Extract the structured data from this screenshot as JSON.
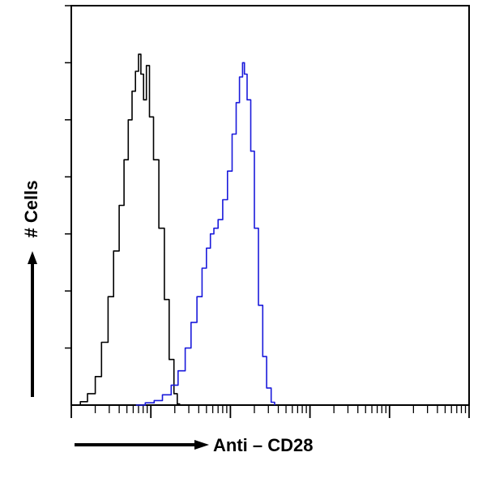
{
  "chart_data": {
    "type": "area",
    "title": "",
    "xlabel": "Anti – CD28",
    "ylabel": "# Cells",
    "x_scale": "log",
    "xlim": [
      1,
      100000
    ],
    "ylim": [
      0,
      7
    ],
    "grid": false,
    "legend": "none",
    "series": [
      {
        "color": "#000000",
        "points": [
          [
            1.0,
            0
          ],
          [
            1.3,
            0.06
          ],
          [
            1.6,
            0.2
          ],
          [
            2.0,
            0.5
          ],
          [
            2.4,
            1.1
          ],
          [
            2.9,
            1.9
          ],
          [
            3.4,
            2.7
          ],
          [
            4.0,
            3.5
          ],
          [
            4.6,
            4.3
          ],
          [
            5.2,
            5.0
          ],
          [
            5.8,
            5.5
          ],
          [
            6.4,
            5.85
          ],
          [
            7.0,
            6.15
          ],
          [
            7.5,
            5.8
          ],
          [
            8.1,
            5.35
          ],
          [
            8.8,
            5.95
          ],
          [
            9.6,
            5.05
          ],
          [
            10.8,
            4.3
          ],
          [
            12.6,
            3.1
          ],
          [
            14.8,
            1.85
          ],
          [
            17.0,
            0.8
          ],
          [
            19.5,
            0.2
          ],
          [
            21.5,
            0.02
          ],
          [
            23.0,
            0
          ]
        ]
      },
      {
        "color": "#1a1adb",
        "points": [
          [
            6.5,
            0
          ],
          [
            8.5,
            0.04
          ],
          [
            11.0,
            0.08
          ],
          [
            14.0,
            0.18
          ],
          [
            18.0,
            0.35
          ],
          [
            22.0,
            0.6
          ],
          [
            27.0,
            1.0
          ],
          [
            32.0,
            1.45
          ],
          [
            38.0,
            1.9
          ],
          [
            44.0,
            2.4
          ],
          [
            50.0,
            2.75
          ],
          [
            56.0,
            3.0
          ],
          [
            62.0,
            3.1
          ],
          [
            70.0,
            3.25
          ],
          [
            80.0,
            3.6
          ],
          [
            92.0,
            4.1
          ],
          [
            105.0,
            4.75
          ],
          [
            118.0,
            5.3
          ],
          [
            130.0,
            5.75
          ],
          [
            142.0,
            6.0
          ],
          [
            150.0,
            5.8
          ],
          [
            162.0,
            5.35
          ],
          [
            180.0,
            4.45
          ],
          [
            200.0,
            3.1
          ],
          [
            225.0,
            1.75
          ],
          [
            255.0,
            0.85
          ],
          [
            285.0,
            0.3
          ],
          [
            325.0,
            0.05
          ],
          [
            360.0,
            0
          ]
        ]
      }
    ],
    "axis_color": "#000000",
    "y_tick_count": 8
  }
}
